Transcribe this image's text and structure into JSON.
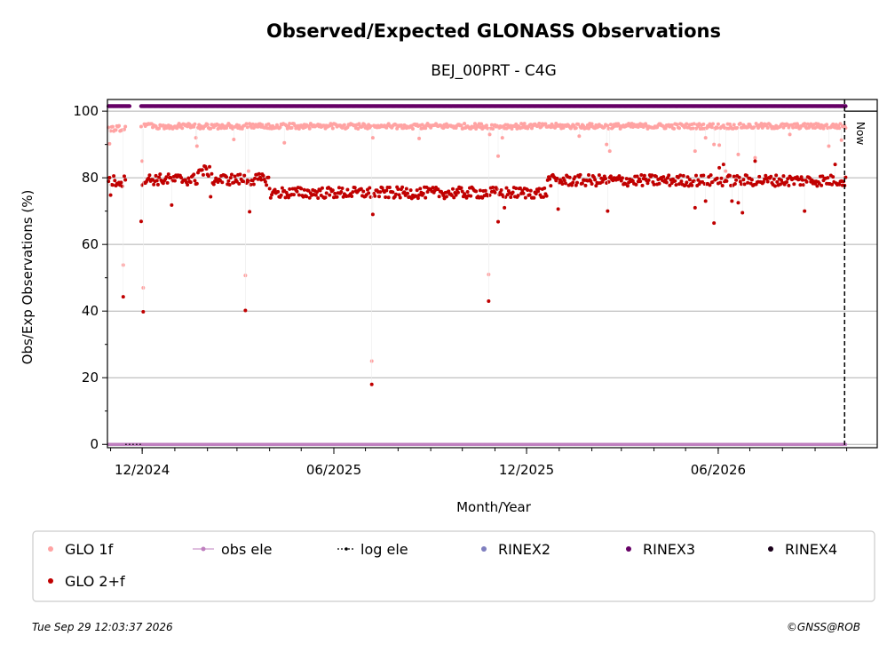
{
  "chart_data": {
    "type": "scatter",
    "title": "Observed/Expected GLONASS Observations",
    "subtitle": "BEJ_00PRT - C4G",
    "xlabel": "Month/Year",
    "ylabel": "Obs/Exp Observations (%)",
    "ylim": [
      -1,
      103.5
    ],
    "x_range": [
      "2024-10-29",
      "2026-10-30"
    ],
    "x_ticks": [
      {
        "date": "2024-12-01",
        "label": "12/2024"
      },
      {
        "date": "2025-06-01",
        "label": "06/2025"
      },
      {
        "date": "2025-12-01",
        "label": "12/2025"
      },
      {
        "date": "2026-06-01",
        "label": "06/2026"
      }
    ],
    "y_ticks": [
      0,
      20,
      40,
      60,
      80,
      100
    ],
    "grid": "horizontal",
    "now_date": "2026-09-29",
    "now_label": "Now",
    "legend_position": "below",
    "series": [
      {
        "name": "GLO 1f",
        "color": "#ffa3a3",
        "marker": "dot",
        "segments": [
          {
            "from": "2024-10-30",
            "to": "2024-11-15",
            "level": 94.8
          },
          {
            "from": "2024-11-30",
            "to": "2026-09-30",
            "level": 95.5
          }
        ],
        "outliers": [
          {
            "x": "2024-10-31",
            "y": 90.2
          },
          {
            "x": "2024-11-13",
            "y": 53.8
          },
          {
            "x": "2024-12-01",
            "y": 85.0
          },
          {
            "x": "2024-12-02",
            "y": 47.0
          },
          {
            "x": "2025-01-21",
            "y": 92.0
          },
          {
            "x": "2025-01-22",
            "y": 89.5
          },
          {
            "x": "2025-02-26",
            "y": 91.5
          },
          {
            "x": "2025-03-09",
            "y": 50.7
          },
          {
            "x": "2025-03-12",
            "y": 82.0
          },
          {
            "x": "2025-04-15",
            "y": 90.5
          },
          {
            "x": "2025-07-07",
            "y": 25.0
          },
          {
            "x": "2025-07-08",
            "y": 92.0
          },
          {
            "x": "2025-08-21",
            "y": 91.8
          },
          {
            "x": "2025-10-26",
            "y": 51.0
          },
          {
            "x": "2025-10-27",
            "y": 93.0
          },
          {
            "x": "2025-11-04",
            "y": 86.5
          },
          {
            "x": "2025-11-08",
            "y": 92.0
          },
          {
            "x": "2026-01-20",
            "y": 92.5
          },
          {
            "x": "2026-02-15",
            "y": 90.0
          },
          {
            "x": "2026-02-18",
            "y": 88.0
          },
          {
            "x": "2026-05-10",
            "y": 88.0
          },
          {
            "x": "2026-05-20",
            "y": 92.0
          },
          {
            "x": "2026-05-28",
            "y": 90.0
          },
          {
            "x": "2026-06-02",
            "y": 89.8
          },
          {
            "x": "2026-06-08",
            "y": 82.0
          },
          {
            "x": "2026-06-20",
            "y": 87.0
          },
          {
            "x": "2026-07-06",
            "y": 86.0
          },
          {
            "x": "2026-08-08",
            "y": 93.0
          },
          {
            "x": "2026-09-14",
            "y": 89.5
          },
          {
            "x": "2026-09-26",
            "y": 91.3
          }
        ]
      },
      {
        "name": "GLO 2+f",
        "color": "#c00000",
        "marker": "dot",
        "segments": [
          {
            "from": "2024-10-30",
            "to": "2024-11-15",
            "level": 79.0
          },
          {
            "from": "2024-11-30",
            "to": "2025-01-22",
            "level": 79.5
          },
          {
            "from": "2025-01-23",
            "to": "2025-02-04",
            "level": 82.0
          },
          {
            "from": "2025-02-05",
            "to": "2025-03-31",
            "level": 79.5
          },
          {
            "from": "2025-04-01",
            "to": "2025-12-20",
            "level": 75.5
          },
          {
            "from": "2025-12-21",
            "to": "2026-09-30",
            "level": 79.2
          }
        ],
        "outliers": [
          {
            "x": "2024-11-01",
            "y": 74.8
          },
          {
            "x": "2024-11-13",
            "y": 44.3
          },
          {
            "x": "2024-11-30",
            "y": 66.9
          },
          {
            "x": "2024-12-02",
            "y": 39.8
          },
          {
            "x": "2024-12-29",
            "y": 71.8
          },
          {
            "x": "2025-02-04",
            "y": 74.3
          },
          {
            "x": "2025-03-09",
            "y": 40.2
          },
          {
            "x": "2025-03-13",
            "y": 69.8
          },
          {
            "x": "2025-07-07",
            "y": 18.0
          },
          {
            "x": "2025-07-08",
            "y": 69.0
          },
          {
            "x": "2025-10-26",
            "y": 43.0
          },
          {
            "x": "2025-11-04",
            "y": 66.8
          },
          {
            "x": "2025-11-10",
            "y": 71.0
          },
          {
            "x": "2025-12-31",
            "y": 70.6
          },
          {
            "x": "2026-02-16",
            "y": 70.0
          },
          {
            "x": "2026-05-10",
            "y": 71.0
          },
          {
            "x": "2026-05-20",
            "y": 73.0
          },
          {
            "x": "2026-05-28",
            "y": 66.4
          },
          {
            "x": "2026-06-02",
            "y": 83.0
          },
          {
            "x": "2026-06-06",
            "y": 84.0
          },
          {
            "x": "2026-06-14",
            "y": 73.0
          },
          {
            "x": "2026-06-20",
            "y": 72.5
          },
          {
            "x": "2026-06-24",
            "y": 69.5
          },
          {
            "x": "2026-07-06",
            "y": 85.0
          },
          {
            "x": "2026-08-22",
            "y": 70.0
          },
          {
            "x": "2026-09-20",
            "y": 84.0
          },
          {
            "x": "2026-09-26",
            "y": 79.0
          }
        ]
      },
      {
        "name": "obs ele",
        "color": "#bf7fbf",
        "marker": "dot-line",
        "segments": [
          {
            "from": "2024-10-30",
            "to": "2026-09-30",
            "level": 0
          }
        ]
      },
      {
        "name": "log ele",
        "color": "#000000",
        "marker": "dotted-line",
        "segments": [
          {
            "from": "2024-11-15",
            "to": "2024-11-30",
            "level": 0
          }
        ]
      },
      {
        "name": "RINEX2",
        "color": "#7f7fbf",
        "marker": "dot",
        "segments": []
      },
      {
        "name": "RINEX3",
        "color": "#660066",
        "marker": "dot",
        "segments": [
          {
            "from": "2024-10-30",
            "to": "2024-11-19",
            "level": 101.5
          },
          {
            "from": "2024-11-30",
            "to": "2026-09-30",
            "level": 101.5
          }
        ]
      },
      {
        "name": "RINEX4",
        "color": "#1a001a",
        "marker": "dot",
        "segments": []
      }
    ]
  },
  "footer": {
    "timestamp": "Tue Sep 29 12:03:37 2026",
    "credit": "©GNSS@ROB"
  }
}
